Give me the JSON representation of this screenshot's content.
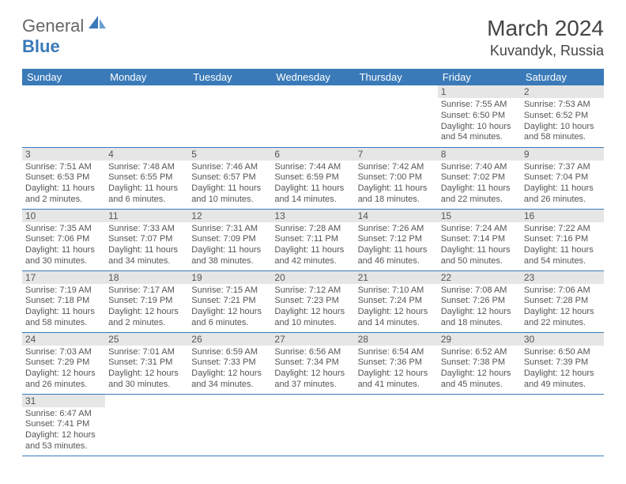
{
  "logo": {
    "part1": "General",
    "part2": "Blue"
  },
  "title": "March 2024",
  "location": "Kuvandyk, Russia",
  "dayHeaders": [
    "Sunday",
    "Monday",
    "Tuesday",
    "Wednesday",
    "Thursday",
    "Friday",
    "Saturday"
  ],
  "colors": {
    "headerBg": "#3a7ab8",
    "headerText": "#ffffff",
    "dayNumBg": "#e6e6e6",
    "rowBorder": "#3a7ab8",
    "text": "#555555",
    "logoBlue": "#3a7ab8"
  },
  "weeks": [
    [
      null,
      null,
      null,
      null,
      null,
      {
        "n": "1",
        "sr": "7:55 AM",
        "ss": "6:50 PM",
        "dl": "10 hours and 54 minutes."
      },
      {
        "n": "2",
        "sr": "7:53 AM",
        "ss": "6:52 PM",
        "dl": "10 hours and 58 minutes."
      }
    ],
    [
      {
        "n": "3",
        "sr": "7:51 AM",
        "ss": "6:53 PM",
        "dl": "11 hours and 2 minutes."
      },
      {
        "n": "4",
        "sr": "7:48 AM",
        "ss": "6:55 PM",
        "dl": "11 hours and 6 minutes."
      },
      {
        "n": "5",
        "sr": "7:46 AM",
        "ss": "6:57 PM",
        "dl": "11 hours and 10 minutes."
      },
      {
        "n": "6",
        "sr": "7:44 AM",
        "ss": "6:59 PM",
        "dl": "11 hours and 14 minutes."
      },
      {
        "n": "7",
        "sr": "7:42 AM",
        "ss": "7:00 PM",
        "dl": "11 hours and 18 minutes."
      },
      {
        "n": "8",
        "sr": "7:40 AM",
        "ss": "7:02 PM",
        "dl": "11 hours and 22 minutes."
      },
      {
        "n": "9",
        "sr": "7:37 AM",
        "ss": "7:04 PM",
        "dl": "11 hours and 26 minutes."
      }
    ],
    [
      {
        "n": "10",
        "sr": "7:35 AM",
        "ss": "7:06 PM",
        "dl": "11 hours and 30 minutes."
      },
      {
        "n": "11",
        "sr": "7:33 AM",
        "ss": "7:07 PM",
        "dl": "11 hours and 34 minutes."
      },
      {
        "n": "12",
        "sr": "7:31 AM",
        "ss": "7:09 PM",
        "dl": "11 hours and 38 minutes."
      },
      {
        "n": "13",
        "sr": "7:28 AM",
        "ss": "7:11 PM",
        "dl": "11 hours and 42 minutes."
      },
      {
        "n": "14",
        "sr": "7:26 AM",
        "ss": "7:12 PM",
        "dl": "11 hours and 46 minutes."
      },
      {
        "n": "15",
        "sr": "7:24 AM",
        "ss": "7:14 PM",
        "dl": "11 hours and 50 minutes."
      },
      {
        "n": "16",
        "sr": "7:22 AM",
        "ss": "7:16 PM",
        "dl": "11 hours and 54 minutes."
      }
    ],
    [
      {
        "n": "17",
        "sr": "7:19 AM",
        "ss": "7:18 PM",
        "dl": "11 hours and 58 minutes."
      },
      {
        "n": "18",
        "sr": "7:17 AM",
        "ss": "7:19 PM",
        "dl": "12 hours and 2 minutes."
      },
      {
        "n": "19",
        "sr": "7:15 AM",
        "ss": "7:21 PM",
        "dl": "12 hours and 6 minutes."
      },
      {
        "n": "20",
        "sr": "7:12 AM",
        "ss": "7:23 PM",
        "dl": "12 hours and 10 minutes."
      },
      {
        "n": "21",
        "sr": "7:10 AM",
        "ss": "7:24 PM",
        "dl": "12 hours and 14 minutes."
      },
      {
        "n": "22",
        "sr": "7:08 AM",
        "ss": "7:26 PM",
        "dl": "12 hours and 18 minutes."
      },
      {
        "n": "23",
        "sr": "7:06 AM",
        "ss": "7:28 PM",
        "dl": "12 hours and 22 minutes."
      }
    ],
    [
      {
        "n": "24",
        "sr": "7:03 AM",
        "ss": "7:29 PM",
        "dl": "12 hours and 26 minutes."
      },
      {
        "n": "25",
        "sr": "7:01 AM",
        "ss": "7:31 PM",
        "dl": "12 hours and 30 minutes."
      },
      {
        "n": "26",
        "sr": "6:59 AM",
        "ss": "7:33 PM",
        "dl": "12 hours and 34 minutes."
      },
      {
        "n": "27",
        "sr": "6:56 AM",
        "ss": "7:34 PM",
        "dl": "12 hours and 37 minutes."
      },
      {
        "n": "28",
        "sr": "6:54 AM",
        "ss": "7:36 PM",
        "dl": "12 hours and 41 minutes."
      },
      {
        "n": "29",
        "sr": "6:52 AM",
        "ss": "7:38 PM",
        "dl": "12 hours and 45 minutes."
      },
      {
        "n": "30",
        "sr": "6:50 AM",
        "ss": "7:39 PM",
        "dl": "12 hours and 49 minutes."
      }
    ],
    [
      {
        "n": "31",
        "sr": "6:47 AM",
        "ss": "7:41 PM",
        "dl": "12 hours and 53 minutes."
      },
      null,
      null,
      null,
      null,
      null,
      null
    ]
  ],
  "labels": {
    "sunrise": "Sunrise:",
    "sunset": "Sunset:",
    "daylight": "Daylight:"
  }
}
